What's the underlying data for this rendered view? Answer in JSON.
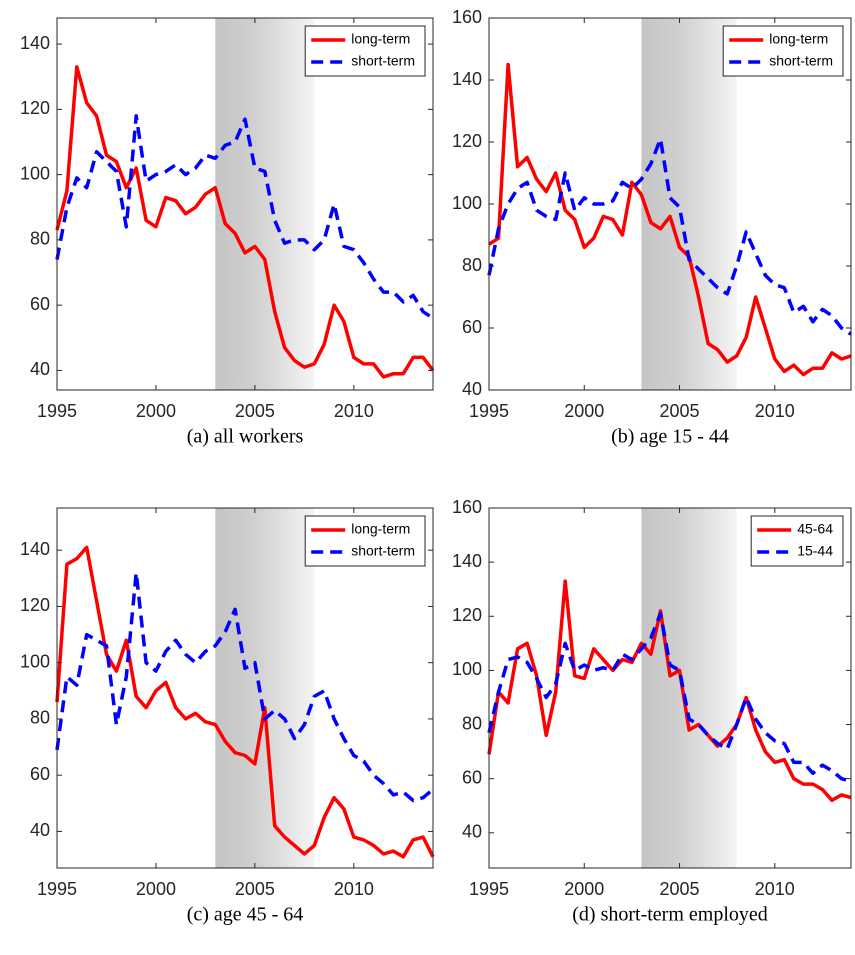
{
  "chart_data": [
    {
      "type": "line",
      "caption": "(a) all workers",
      "x": [
        1995,
        1995.5,
        1996,
        1996.5,
        1997,
        1997.5,
        1998,
        1998.5,
        1999,
        1999.5,
        2000,
        2000.5,
        2001,
        2001.5,
        2002,
        2002.5,
        2003,
        2003.5,
        2004,
        2004.5,
        2005,
        2005.5,
        2006,
        2006.5,
        2007,
        2007.5,
        2008,
        2008.5,
        2009,
        2009.5,
        2010,
        2010.5,
        2011,
        2011.5,
        2012,
        2012.5,
        2013,
        2013.5,
        2014
      ],
      "xlim": [
        1995,
        2014
      ],
      "xticks": [
        1995,
        2000,
        2005,
        2010
      ],
      "ylim": [
        34,
        148
      ],
      "yticks": [
        40,
        60,
        80,
        100,
        120,
        140
      ],
      "shaded_span": [
        2003,
        2008
      ],
      "legend": "northeast",
      "series": [
        {
          "name": "long-term",
          "color": "#ff0000",
          "linestyle": "solid",
          "values": [
            83,
            95,
            133,
            122,
            118,
            106,
            104,
            96,
            102,
            86,
            84,
            93,
            92,
            88,
            90,
            94,
            96,
            85,
            82,
            76,
            78,
            74,
            58,
            47,
            43,
            41,
            42,
            48,
            60,
            55,
            44,
            42,
            42,
            38,
            39,
            39,
            44,
            44,
            40
          ]
        },
        {
          "name": "short-term",
          "color": "#0000ff",
          "linestyle": "dashed",
          "values": [
            74,
            90,
            99,
            96,
            107,
            104,
            101,
            84,
            118,
            98,
            100,
            101,
            103,
            100,
            102,
            106,
            105,
            109,
            110,
            117,
            102,
            101,
            86,
            79,
            80,
            80,
            77,
            80,
            91,
            78,
            77,
            73,
            68,
            64,
            64,
            61,
            63,
            58,
            56
          ]
        }
      ]
    },
    {
      "type": "line",
      "caption": "(b) age 15 - 44",
      "x": [
        1995,
        1995.5,
        1996,
        1996.5,
        1997,
        1997.5,
        1998,
        1998.5,
        1999,
        1999.5,
        2000,
        2000.5,
        2001,
        2001.5,
        2002,
        2002.5,
        2003,
        2003.5,
        2004,
        2004.5,
        2005,
        2005.5,
        2006,
        2006.5,
        2007,
        2007.5,
        2008,
        2008.5,
        2009,
        2009.5,
        2010,
        2010.5,
        2011,
        2011.5,
        2012,
        2012.5,
        2013,
        2013.5,
        2014
      ],
      "xlim": [
        1995,
        2014
      ],
      "xticks": [
        1995,
        2000,
        2005,
        2010
      ],
      "ylim": [
        40,
        160
      ],
      "yticks": [
        40,
        60,
        80,
        100,
        120,
        140,
        160
      ],
      "shaded_span": [
        2003,
        2008
      ],
      "legend": "northeast",
      "series": [
        {
          "name": "long-term",
          "color": "#ff0000",
          "linestyle": "solid",
          "values": [
            87,
            89,
            145,
            112,
            115,
            108,
            104,
            110,
            98,
            95,
            86,
            89,
            96,
            95,
            90,
            107,
            103,
            94,
            92,
            96,
            86,
            83,
            70,
            55,
            53,
            49,
            51,
            57,
            70,
            60,
            50,
            46,
            48,
            45,
            47,
            47,
            52,
            50,
            51
          ]
        },
        {
          "name": "short-term",
          "color": "#0000ff",
          "linestyle": "dashed",
          "values": [
            77,
            92,
            100,
            105,
            107,
            98,
            96,
            95,
            110,
            98,
            102,
            100,
            100,
            101,
            107,
            105,
            108,
            113,
            121,
            102,
            99,
            82,
            79,
            76,
            73,
            71,
            80,
            91,
            84,
            77,
            74,
            73,
            65,
            67,
            62,
            66,
            64,
            60,
            58
          ]
        }
      ]
    },
    {
      "type": "line",
      "caption": "(c) age 45 - 64",
      "x": [
        1995,
        1995.5,
        1996,
        1996.5,
        1997,
        1997.5,
        1998,
        1998.5,
        1999,
        1999.5,
        2000,
        2000.5,
        2001,
        2001.5,
        2002,
        2002.5,
        2003,
        2003.5,
        2004,
        2004.5,
        2005,
        2005.5,
        2006,
        2006.5,
        2007,
        2007.5,
        2008,
        2008.5,
        2009,
        2009.5,
        2010,
        2010.5,
        2011,
        2011.5,
        2012,
        2012.5,
        2013,
        2013.5,
        2014
      ],
      "xlim": [
        1995,
        2014
      ],
      "xticks": [
        1995,
        2000,
        2005,
        2010
      ],
      "ylim": [
        27,
        155
      ],
      "yticks": [
        40,
        60,
        80,
        100,
        120,
        140
      ],
      "shaded_span": [
        2003,
        2008
      ],
      "legend": "northeast",
      "series": [
        {
          "name": "long-term",
          "color": "#ff0000",
          "linestyle": "solid",
          "values": [
            86,
            135,
            137,
            141,
            122,
            103,
            97,
            108,
            88,
            84,
            90,
            93,
            84,
            80,
            82,
            79,
            78,
            72,
            68,
            67,
            64,
            84,
            42,
            38,
            35,
            32,
            35,
            45,
            52,
            48,
            38,
            37,
            35,
            32,
            33,
            31,
            37,
            38,
            31
          ]
        },
        {
          "name": "short-term",
          "color": "#0000ff",
          "linestyle": "dashed",
          "values": [
            69,
            95,
            92,
            110,
            108,
            106,
            78,
            95,
            132,
            100,
            97,
            104,
            108,
            103,
            100,
            104,
            106,
            111,
            119,
            98,
            100,
            80,
            83,
            80,
            73,
            78,
            88,
            90,
            80,
            73,
            67,
            65,
            60,
            57,
            53,
            54,
            51,
            52,
            55
          ]
        }
      ]
    },
    {
      "type": "line",
      "caption": "(d) short-term employed",
      "x": [
        1995,
        1995.5,
        1996,
        1996.5,
        1997,
        1997.5,
        1998,
        1998.5,
        1999,
        1999.5,
        2000,
        2000.5,
        2001,
        2001.5,
        2002,
        2002.5,
        2003,
        2003.5,
        2004,
        2004.5,
        2005,
        2005.5,
        2006,
        2006.5,
        2007,
        2007.5,
        2008,
        2008.5,
        2009,
        2009.5,
        2010,
        2010.5,
        2011,
        2011.5,
        2012,
        2012.5,
        2013,
        2013.5,
        2014
      ],
      "xlim": [
        1995,
        2014
      ],
      "xticks": [
        1995,
        2000,
        2005,
        2010
      ],
      "ylim": [
        27,
        160
      ],
      "yticks": [
        40,
        60,
        80,
        100,
        120,
        140,
        160
      ],
      "shaded_span": [
        2003,
        2008
      ],
      "legend": "northeast",
      "series": [
        {
          "name": "45-64",
          "color": "#ff0000",
          "linestyle": "solid",
          "values": [
            69,
            92,
            88,
            108,
            110,
            98,
            76,
            92,
            133,
            98,
            97,
            108,
            104,
            100,
            104,
            103,
            110,
            106,
            122,
            98,
            100,
            78,
            80,
            76,
            72,
            75,
            80,
            90,
            78,
            70,
            66,
            67,
            60,
            58,
            58,
            56,
            52,
            54,
            53
          ]
        },
        {
          "name": "15-44",
          "color": "#0000ff",
          "linestyle": "dashed",
          "values": [
            77,
            92,
            104,
            105,
            103,
            97,
            90,
            95,
            110,
            100,
            102,
            100,
            101,
            100,
            106,
            104,
            108,
            112,
            121,
            102,
            100,
            82,
            80,
            76,
            73,
            71,
            80,
            90,
            82,
            77,
            74,
            73,
            66,
            66,
            62,
            65,
            63,
            60,
            59
          ]
        }
      ]
    }
  ]
}
